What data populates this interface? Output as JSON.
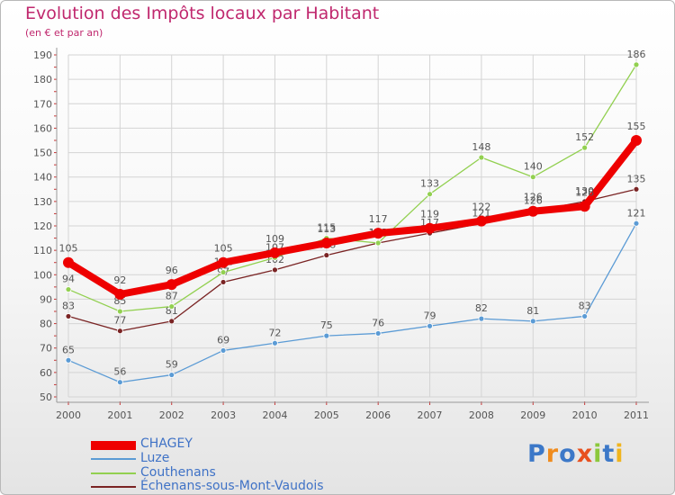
{
  "title": "Evolution des Impôts locaux par Habitant",
  "subtitle": "(en € et par an)",
  "logo": "Proxiti",
  "chart_data": {
    "type": "line",
    "title": "Evolution des Impôts locaux par Habitant",
    "subtitle": "(en € et par an)",
    "xlabel": "",
    "ylabel": "",
    "x": [
      "2000",
      "2001",
      "2002",
      "2003",
      "2004",
      "2005",
      "2006",
      "2007",
      "2008",
      "2009",
      "2010",
      "2011"
    ],
    "ylim": [
      50,
      190
    ],
    "yticks": [
      50,
      60,
      70,
      80,
      90,
      100,
      110,
      120,
      130,
      140,
      150,
      160,
      170,
      180,
      190
    ],
    "grid": true,
    "legend": "bottom-left",
    "series": [
      {
        "name": "Échenans-sous-Mont-Vaudois",
        "color": "#7a2424",
        "values": [
          83,
          77,
          81,
          97,
          102,
          108,
          113,
          117,
          121,
          126,
          130,
          135
        ]
      },
      {
        "name": "Luze",
        "color": "#5b9bd5",
        "values": [
          65,
          56,
          59,
          69,
          72,
          75,
          76,
          79,
          82,
          81,
          83,
          121
        ]
      },
      {
        "name": "Couthenans",
        "color": "#92d050",
        "values": [
          94,
          85,
          87,
          101,
          107,
          115,
          113,
          133,
          148,
          140,
          152,
          186
        ]
      },
      {
        "name": "CHAGEY",
        "color": "#ee0000",
        "values": [
          105,
          92,
          96,
          105,
          109,
          113,
          117,
          119,
          122,
          126,
          128,
          155
        ]
      }
    ]
  },
  "legend_items": [
    {
      "label": "CHAGEY",
      "color": "#ee0000"
    },
    {
      "label": "Luze",
      "color": "#5b9bd5"
    },
    {
      "label": "Couthenans",
      "color": "#92d050"
    },
    {
      "label": "Échenans-sous-Mont-Vaudois",
      "color": "#7a2424"
    }
  ]
}
